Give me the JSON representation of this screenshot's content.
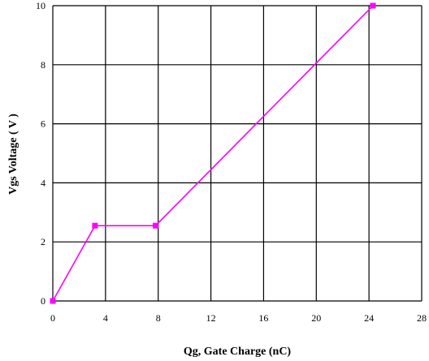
{
  "chart_data": {
    "type": "line",
    "title": "",
    "xlabel": "Qg, Gate Charge (nC)",
    "ylabel": "Vgs Voltage ( V )",
    "xlim": [
      0,
      28
    ],
    "ylim": [
      0,
      10
    ],
    "grid": true,
    "xticks": [
      0,
      4,
      8,
      12,
      16,
      20,
      24,
      28
    ],
    "yticks": [
      0,
      2,
      4,
      6,
      8,
      10
    ],
    "xtick_labels": [
      "0",
      "4",
      "8",
      "12",
      "16",
      "20",
      "24",
      "28"
    ],
    "ytick_labels": [
      "0",
      "2",
      "4",
      "6",
      "8",
      "10"
    ],
    "series": [
      {
        "x": [
          0,
          3.2,
          7.8,
          24.3
        ],
        "y": [
          0,
          2.55,
          2.55,
          10
        ],
        "color": "#ff00ff",
        "marker": "square"
      }
    ]
  }
}
